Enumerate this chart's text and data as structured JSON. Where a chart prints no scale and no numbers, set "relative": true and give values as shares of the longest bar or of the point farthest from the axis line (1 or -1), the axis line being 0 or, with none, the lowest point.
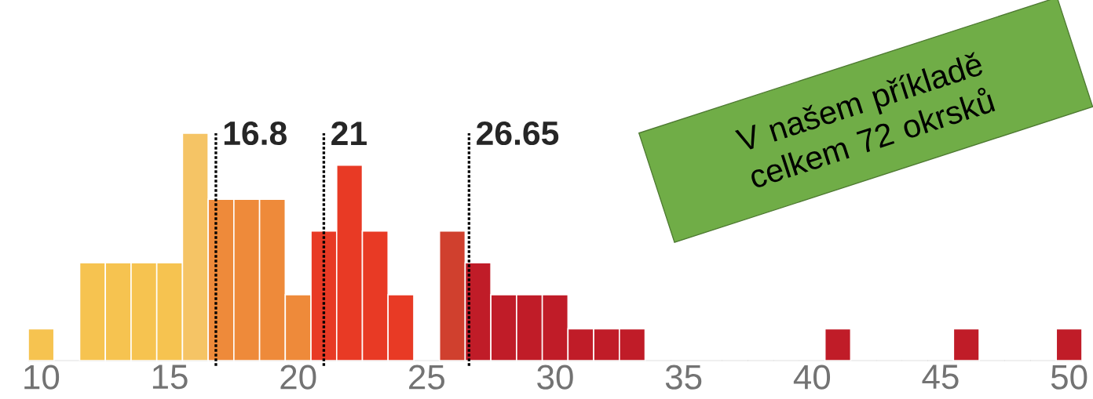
{
  "chart_data": {
    "type": "bar",
    "relative": true,
    "x": [
      10,
      11,
      12,
      13,
      14,
      15,
      16,
      17,
      18,
      19,
      20,
      21,
      22,
      23,
      24,
      25,
      26,
      27,
      28,
      29,
      30,
      31,
      32,
      33,
      34,
      35,
      36,
      37,
      38,
      39,
      40,
      41,
      42,
      43,
      44,
      45,
      46,
      47,
      48,
      49,
      50
    ],
    "values": [
      0.14,
      0,
      0.43,
      0.43,
      0.43,
      0.43,
      1,
      0.71,
      0.71,
      0.71,
      0.29,
      0.57,
      0.86,
      0.57,
      0.29,
      0,
      0.57,
      0.43,
      0.29,
      0.29,
      0.29,
      0.14,
      0.14,
      0.14,
      0,
      0,
      0,
      0,
      0,
      0,
      0,
      0.14,
      0,
      0,
      0,
      0,
      0.14,
      0,
      0,
      0,
      0.14
    ],
    "colors": [
      "#f6c350",
      "#f6c350",
      "#f6c350",
      "#f6c350",
      "#f6c350",
      "#f6c350",
      "#f5c465",
      "#ee8a3a",
      "#ee8a3a",
      "#ee8a3a",
      "#ee8a3a",
      "#e83a25",
      "#e83a25",
      "#e83a25",
      "#e83a25",
      "#c01c28",
      "#d0402e",
      "#c01c28",
      "#c01c28",
      "#c01c28",
      "#c01c28",
      "#c01c28",
      "#c01c28",
      "#c01c28",
      "#c01c28",
      "#c01c28",
      "#c01c28",
      "#c01c28",
      "#c01c28",
      "#c01c28",
      "#c01c28",
      "#c01c28",
      "#c01c28",
      "#c01c28",
      "#c01c28",
      "#c01c28",
      "#c01c28",
      "#c01c28",
      "#c01c28",
      "#c01c28",
      "#c01c28"
    ],
    "xlim": [
      9.5,
      50.5
    ],
    "xticks": [
      {
        "value": 10,
        "label": "10"
      },
      {
        "value": 15,
        "label": "15"
      },
      {
        "value": 20,
        "label": "20"
      },
      {
        "value": 25,
        "label": "25"
      },
      {
        "value": 30,
        "label": "30"
      },
      {
        "value": 35,
        "label": "35"
      },
      {
        "value": 40,
        "label": "40"
      },
      {
        "value": 45,
        "label": "45"
      },
      {
        "value": 50,
        "label": "50"
      }
    ],
    "ref_lines": [
      {
        "axis": "x",
        "value": 16.8,
        "label": "16.8",
        "line_style": "dotted",
        "color": "#000000"
      },
      {
        "axis": "x",
        "value": 21,
        "label": "21",
        "line_style": "dotted",
        "color": "#000000"
      },
      {
        "axis": "x",
        "value": 26.65,
        "label": "26.65",
        "line_style": "dotted",
        "color": "#000000"
      }
    ],
    "annotations": [
      "V našem příkladě celkem 72 okrsků"
    ]
  }
}
